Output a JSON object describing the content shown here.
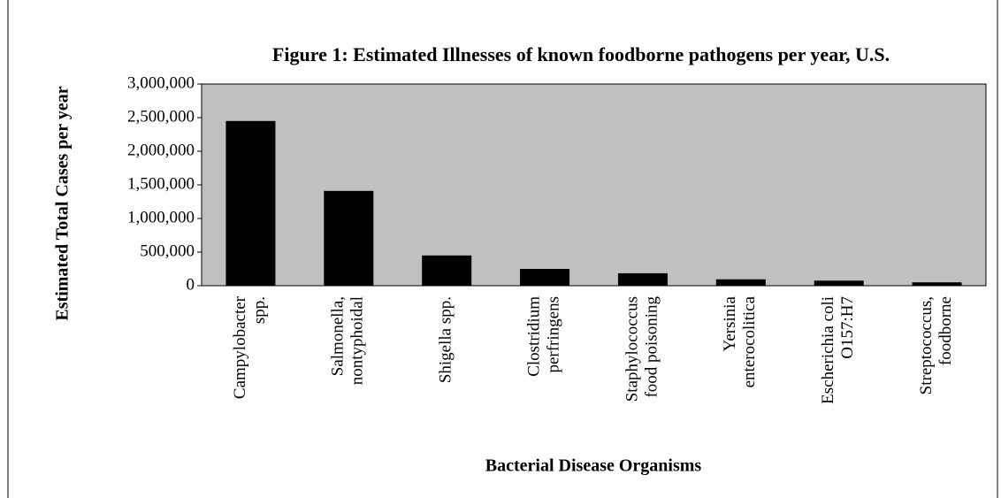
{
  "chart_data": {
    "type": "bar",
    "title": "Figure 1: Estimated Illnesses of known foodborne pathogens per year, U.S.",
    "ylabel": "Estimated Total Cases per year",
    "xlabel": "Bacterial Disease Organisms",
    "categories": [
      [
        "Campylobacter",
        "spp."
      ],
      [
        "Salmonella,",
        "nontyphoidal"
      ],
      [
        "Shigella spp."
      ],
      [
        "Clostridium",
        "perfringens"
      ],
      [
        "Staphylococcus",
        "food poisoning"
      ],
      [
        "Yersinia",
        "enterocolitica"
      ],
      [
        "Escherichia coli",
        "O157:H7"
      ],
      [
        "Streptococcus,",
        "foodborne"
      ]
    ],
    "values": [
      2450000,
      1410000,
      450000,
      250000,
      185000,
      95000,
      75000,
      50000
    ],
    "color": "#000000",
    "plot_background": "#c0c0c0",
    "ylim": [
      0,
      3000000
    ],
    "yticks": [
      0,
      {
        "value": 500000,
        "label": "500,000"
      },
      {
        "value": 1000000,
        "label": "1,000,000"
      },
      {
        "value": 1500000,
        "label": "1,500,000"
      },
      {
        "value": 2000000,
        "label": "2,000,000"
      },
      {
        "value": 2500000,
        "label": "2,500,000"
      },
      {
        "value": 3000000,
        "label": "3,000,000"
      }
    ],
    "grid": false
  }
}
